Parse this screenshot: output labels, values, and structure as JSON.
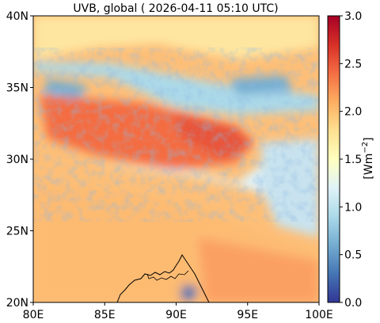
{
  "title": "UVB, global ( 2026-04-11 05:10 UTC)",
  "map": {
    "lon_range": [
      80,
      100
    ],
    "lat_range": [
      20,
      40
    ],
    "x_ticks": [
      {
        "value": 80,
        "label": "80E"
      },
      {
        "value": 85,
        "label": "85E"
      },
      {
        "value": 90,
        "label": "90E"
      },
      {
        "value": 95,
        "label": "95E"
      },
      {
        "value": 100,
        "label": "100E"
      }
    ],
    "y_ticks": [
      {
        "value": 20,
        "label": "20N"
      },
      {
        "value": 25,
        "label": "25N"
      },
      {
        "value": 30,
        "label": "30N"
      },
      {
        "value": 35,
        "label": "35N"
      },
      {
        "value": 40,
        "label": "40N"
      }
    ],
    "colormap": "RdYlBu_r"
  },
  "colorbar": {
    "label_base": "[Wm",
    "label_sup": "−2",
    "label_end": "]",
    "range": [
      0.0,
      3.0
    ],
    "ticks": [
      {
        "value": 0.0,
        "label": "0.0"
      },
      {
        "value": 0.5,
        "label": "0.5"
      },
      {
        "value": 1.0,
        "label": "1.0"
      },
      {
        "value": 1.5,
        "label": "1.5"
      },
      {
        "value": 2.0,
        "label": "2.0"
      },
      {
        "value": 2.5,
        "label": "2.5"
      },
      {
        "value": 3.0,
        "label": "3.0"
      }
    ],
    "colors": [
      "#313695",
      "#4575b4",
      "#74add1",
      "#abd9e9",
      "#e0f3f8",
      "#ffffbf",
      "#fee090",
      "#fdae61",
      "#f46d43",
      "#d73027",
      "#a50026"
    ]
  }
}
